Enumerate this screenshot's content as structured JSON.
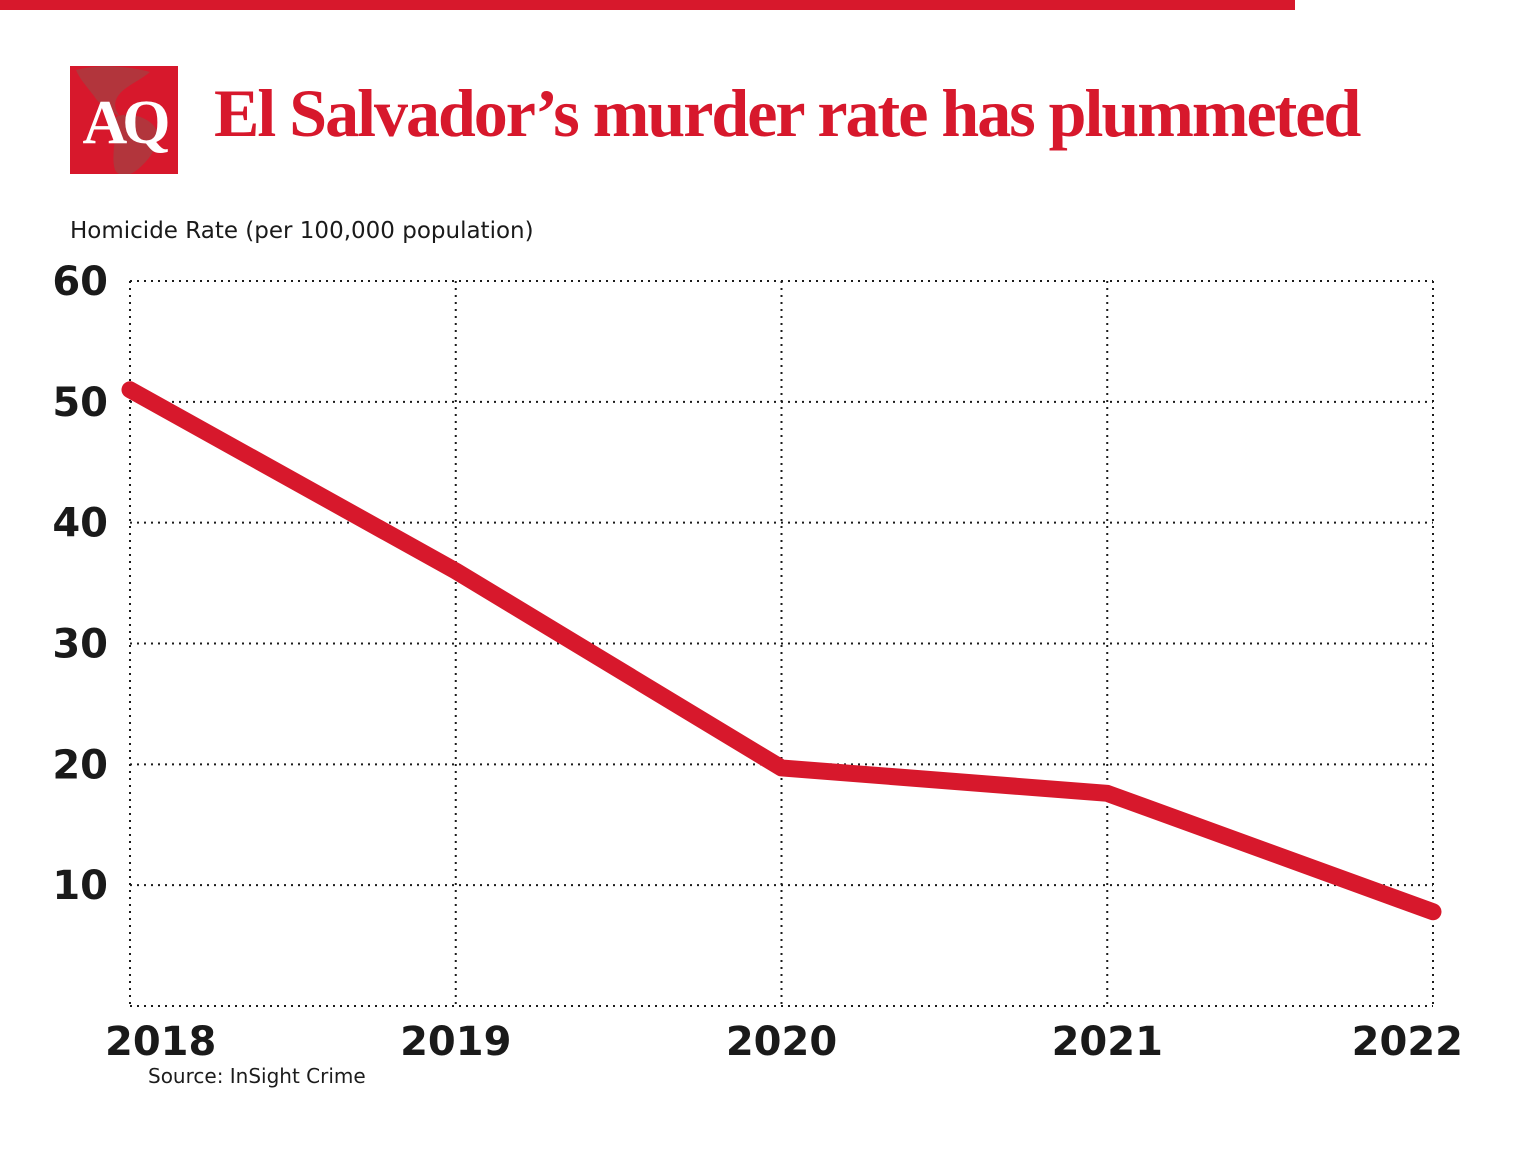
{
  "header": {
    "logo_text": "AQ",
    "title": "El Salvador’s murder rate has plummeted"
  },
  "colors": {
    "accent": "#d7182c",
    "map_fill": "#b2353c",
    "grid": "#1b1b1b",
    "text": "#1a1a1a"
  },
  "chart_data": {
    "type": "line",
    "title": "El Salvador’s murder rate has plummeted",
    "ylabel": "Homicide Rate (per 100,000 population)",
    "x": [
      "2018",
      "2019",
      "2020",
      "2021",
      "2022"
    ],
    "series": [
      {
        "name": "Homicide rate per 100,000",
        "values": [
          51,
          36,
          19.7,
          17.6,
          7.8
        ]
      }
    ],
    "ylim": [
      0,
      60
    ],
    "yticks": [
      10,
      20,
      30,
      40,
      50,
      60
    ],
    "grid": "dotted",
    "legend": "none",
    "line_color": "#d7182c",
    "source": "Source: InSight Crime"
  }
}
